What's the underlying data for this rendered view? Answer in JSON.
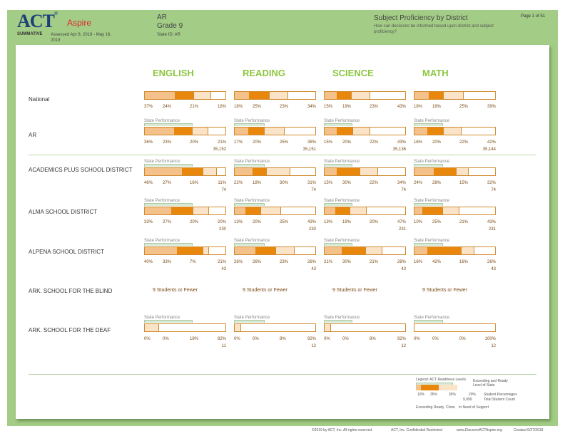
{
  "header": {
    "logo": "ACT",
    "logo_sub": "Aspire",
    "summative": "SUMMATIVE",
    "assessed": "Assessed Apr 8, 2019 - May 16, 2019",
    "state": "AR",
    "grade": "Grade 9",
    "state_id": "State ID: AR",
    "report_title": "Subject Proficiency by District",
    "report_subtitle": "How can decisions be informed based upon district and subject proficiency?",
    "page": "Page 1 of 51"
  },
  "subjects": [
    "ENGLISH",
    "READING",
    "SCIENCE",
    "MATH"
  ],
  "state_performance_label": "State Performance",
  "state_exceeding_ready": [
    59,
    37,
    35,
    36
  ],
  "colors": {
    "exceeding": "#f5c18a",
    "ready": "#e8870c",
    "close": "#fbe3c8",
    "need_support": "#ffffff",
    "border": "#d08a2c",
    "subject_heading": "#8dc63f",
    "background": "#a3cd86"
  },
  "rows": [
    {
      "name": "National",
      "state_perf": false,
      "data": [
        [
          37,
          24,
          21,
          18
        ],
        [
          18,
          25,
          23,
          34
        ],
        [
          15,
          19,
          23,
          43
        ],
        [
          18,
          18,
          25,
          39
        ]
      ],
      "counts": [
        "",
        "",
        "",
        ""
      ]
    },
    {
      "name": "AR",
      "state_perf": true,
      "data": [
        [
          36,
          23,
          20,
          21
        ],
        [
          17,
          20,
          25,
          38
        ],
        [
          15,
          20,
          22,
          43
        ],
        [
          16,
          20,
          22,
          42
        ]
      ],
      "counts": [
        "35,152",
        "35,151",
        "35,136",
        "35,144"
      ]
    },
    {
      "name": "ACADEMICS PLUS SCHOOL DISTRICT",
      "state_perf": true,
      "data": [
        [
          46,
          27,
          16,
          11
        ],
        [
          22,
          18,
          30,
          31
        ],
        [
          15,
          30,
          22,
          34
        ],
        [
          24,
          28,
          15,
          32
        ]
      ],
      "counts": [
        "74",
        "74",
        "74",
        "74"
      ]
    },
    {
      "name": "ALMA SCHOOL DISTRICT",
      "state_perf": true,
      "data": [
        [
          33,
          27,
          20,
          20
        ],
        [
          13,
          20,
          25,
          43
        ],
        [
          13,
          19,
          20,
          47
        ],
        [
          10,
          25,
          21,
          43
        ]
      ],
      "counts": [
        "230",
        "230",
        "231",
        "231"
      ]
    },
    {
      "name": "ALPENA SCHOOL DISTRICT",
      "state_perf": true,
      "data": [
        [
          40,
          33,
          7,
          21
        ],
        [
          26,
          26,
          23,
          26
        ],
        [
          21,
          30,
          21,
          28
        ],
        [
          16,
          42,
          16,
          26
        ]
      ],
      "counts": [
        "43",
        "43",
        "43",
        "43"
      ]
    },
    {
      "name": "ARK. SCHOOL FOR THE BLIND",
      "few": "9 Students or Fewer"
    },
    {
      "name": "ARK. SCHOOL FOR THE DEAF",
      "state_perf": true,
      "data": [
        [
          0,
          0,
          18,
          82
        ],
        [
          0,
          0,
          8,
          92
        ],
        [
          0,
          0,
          8,
          92
        ],
        [
          0,
          0,
          0,
          100
        ]
      ],
      "counts": [
        "11",
        "12",
        "12",
        "12"
      ]
    }
  ],
  "legend": {
    "title": "Legend: ACT Readiness Levels",
    "state_label": "Exceeding and Ready Level of State",
    "values": [
      "10%",
      "35%",
      "35%",
      "20%"
    ],
    "count": "9,999",
    "pct_label": "Student Percentages",
    "count_label": "Total Student Count",
    "levels": [
      "Exceeding",
      "Ready",
      "Close",
      "In Need of Support"
    ]
  },
  "footer": {
    "copyright": "©2019 by ACT, Inc. All rights reserved.",
    "confidential": "ACT, Inc. Confidential Restricted",
    "url": "www.DiscoverACTAspire.org",
    "created": "Created 6/27/2019"
  }
}
